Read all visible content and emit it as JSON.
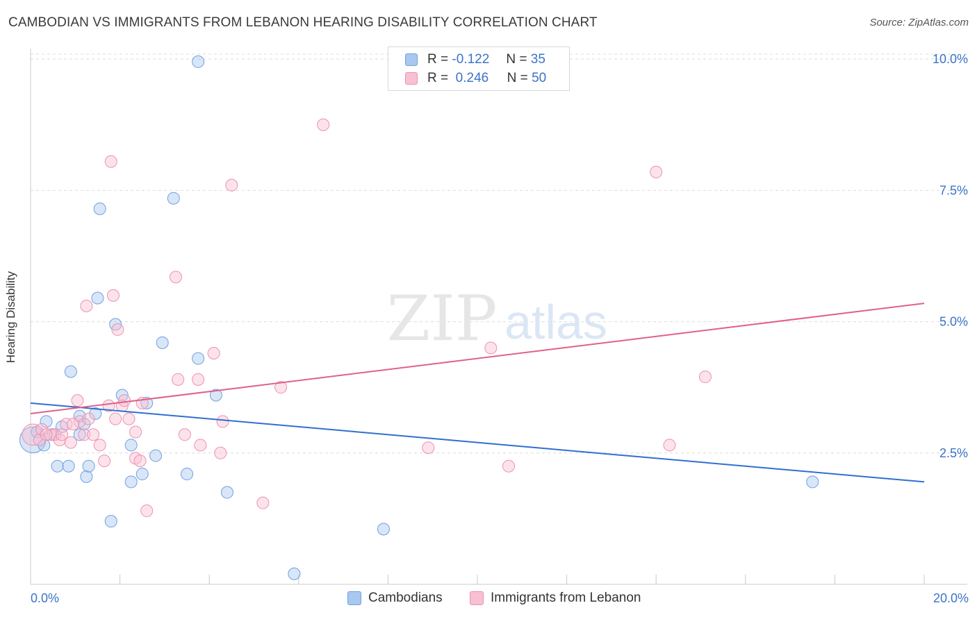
{
  "header": {
    "title": "CAMBODIAN VS IMMIGRANTS FROM LEBANON HEARING DISABILITY CORRELATION CHART",
    "source": "Source: ZipAtlas.com"
  },
  "watermark": {
    "zip": "ZIP",
    "atlas": "atlas"
  },
  "legend_top": {
    "rows": [
      {
        "r_label": "R =",
        "r_value": "-0.122",
        "n_label": "N =",
        "n_value": "35",
        "color": "#a9c8f0",
        "border": "#6f9fe0"
      },
      {
        "r_label": "R =",
        "r_value": "0.246",
        "n_label": "N =",
        "n_value": "50",
        "color": "#f8c0d2",
        "border": "#ee90ae"
      }
    ]
  },
  "legend_bottom": {
    "items": [
      {
        "label": "Cambodians",
        "color": "#a9c8f0",
        "border": "#6f9fe0"
      },
      {
        "label": "Immigrants from Lebanon",
        "color": "#f8c0d2",
        "border": "#ee90ae"
      }
    ]
  },
  "chart_data": {
    "type": "scatter",
    "title": "CAMBODIAN VS IMMIGRANTS FROM LEBANON HEARING DISABILITY CORRELATION CHART",
    "xlabel": "",
    "ylabel": "Hearing Disability",
    "xlim": [
      0,
      20
    ],
    "ylim": [
      0,
      10.2
    ],
    "x_tick_labels": [
      "0.0%",
      "20.0%"
    ],
    "y_ticks": [
      2.5,
      5.0,
      7.5,
      10.0
    ],
    "y_tick_labels": [
      "2.5%",
      "5.0%",
      "7.5%",
      "10.0%"
    ],
    "grid": true,
    "series": [
      {
        "name": "Cambodians",
        "color": "#6f9fe0",
        "fill": "#a9c8f0",
        "line_color": "#2f6fd0",
        "trend": {
          "x0": 0,
          "y0": 3.45,
          "x1": 20,
          "y1": 1.95
        },
        "points": [
          [
            0.05,
            2.75,
            22
          ],
          [
            0.15,
            2.9,
            10
          ],
          [
            0.3,
            2.65,
            10
          ],
          [
            0.35,
            3.1,
            10
          ],
          [
            0.6,
            2.25,
            10
          ],
          [
            0.85,
            2.25,
            10
          ],
          [
            0.9,
            4.05,
            10
          ],
          [
            1.1,
            2.85,
            10
          ],
          [
            1.1,
            3.2,
            10
          ],
          [
            1.2,
            3.05,
            10
          ],
          [
            1.25,
            2.05,
            10
          ],
          [
            1.3,
            2.25,
            10
          ],
          [
            1.45,
            3.25,
            10
          ],
          [
            1.5,
            5.45,
            10
          ],
          [
            1.55,
            7.15,
            10
          ],
          [
            1.9,
            4.95,
            10
          ],
          [
            1.8,
            1.2,
            10
          ],
          [
            2.05,
            3.6,
            10
          ],
          [
            2.25,
            1.95,
            10
          ],
          [
            2.25,
            2.65,
            10
          ],
          [
            2.5,
            2.1,
            10
          ],
          [
            2.6,
            3.45,
            10
          ],
          [
            2.8,
            2.45,
            10
          ],
          [
            2.95,
            4.6,
            10
          ],
          [
            3.2,
            7.35,
            10
          ],
          [
            3.5,
            2.1,
            10
          ],
          [
            3.75,
            4.3,
            10
          ],
          [
            3.75,
            9.95,
            10
          ],
          [
            4.15,
            3.6,
            10
          ],
          [
            4.4,
            1.75,
            10
          ],
          [
            5.9,
            0.2,
            10
          ],
          [
            7.9,
            1.05,
            10
          ],
          [
            17.5,
            1.95,
            10
          ],
          [
            0.5,
            2.85,
            10
          ],
          [
            0.7,
            3.0,
            10
          ]
        ]
      },
      {
        "name": "Immigrants from Lebanon",
        "color": "#ee90ae",
        "fill": "#f8c0d2",
        "line_color": "#e0608a",
        "trend": {
          "x0": 0,
          "y0": 3.25,
          "x1": 20,
          "y1": 5.35
        },
        "points": [
          [
            0.05,
            2.85,
            18
          ],
          [
            0.2,
            2.75,
            10
          ],
          [
            0.25,
            2.95,
            10
          ],
          [
            0.45,
            2.85,
            10
          ],
          [
            0.55,
            2.85,
            10
          ],
          [
            0.65,
            2.75,
            10
          ],
          [
            0.7,
            2.85,
            10
          ],
          [
            0.8,
            3.05,
            10
          ],
          [
            0.9,
            2.7,
            10
          ],
          [
            1.05,
            3.5,
            10
          ],
          [
            1.1,
            3.1,
            10
          ],
          [
            1.2,
            2.85,
            10
          ],
          [
            1.25,
            5.3,
            10
          ],
          [
            1.3,
            3.15,
            10
          ],
          [
            1.4,
            2.85,
            10
          ],
          [
            1.55,
            2.65,
            10
          ],
          [
            1.65,
            2.35,
            10
          ],
          [
            1.75,
            3.4,
            10
          ],
          [
            1.8,
            8.05,
            10
          ],
          [
            1.85,
            5.5,
            10
          ],
          [
            1.9,
            3.15,
            10
          ],
          [
            1.95,
            4.85,
            10
          ],
          [
            2.05,
            3.4,
            10
          ],
          [
            2.1,
            3.5,
            10
          ],
          [
            2.2,
            3.15,
            10
          ],
          [
            2.35,
            2.9,
            10
          ],
          [
            2.35,
            2.4,
            10
          ],
          [
            2.45,
            2.35,
            10
          ],
          [
            2.5,
            3.45,
            10
          ],
          [
            2.6,
            1.4,
            10
          ],
          [
            3.25,
            5.85,
            10
          ],
          [
            3.3,
            3.9,
            10
          ],
          [
            3.45,
            2.85,
            10
          ],
          [
            3.75,
            3.9,
            10
          ],
          [
            3.8,
            2.65,
            10
          ],
          [
            4.1,
            4.4,
            10
          ],
          [
            4.25,
            2.5,
            10
          ],
          [
            4.3,
            3.1,
            10
          ],
          [
            4.5,
            7.6,
            10
          ],
          [
            5.2,
            1.55,
            10
          ],
          [
            5.6,
            3.75,
            10
          ],
          [
            6.55,
            8.75,
            10
          ],
          [
            8.9,
            2.6,
            10
          ],
          [
            10.3,
            4.5,
            10
          ],
          [
            10.7,
            2.25,
            10
          ],
          [
            14.0,
            7.85,
            10
          ],
          [
            14.3,
            2.65,
            10
          ],
          [
            15.1,
            3.95,
            10
          ],
          [
            0.35,
            2.85,
            10
          ],
          [
            0.95,
            3.05,
            10
          ]
        ]
      }
    ]
  }
}
